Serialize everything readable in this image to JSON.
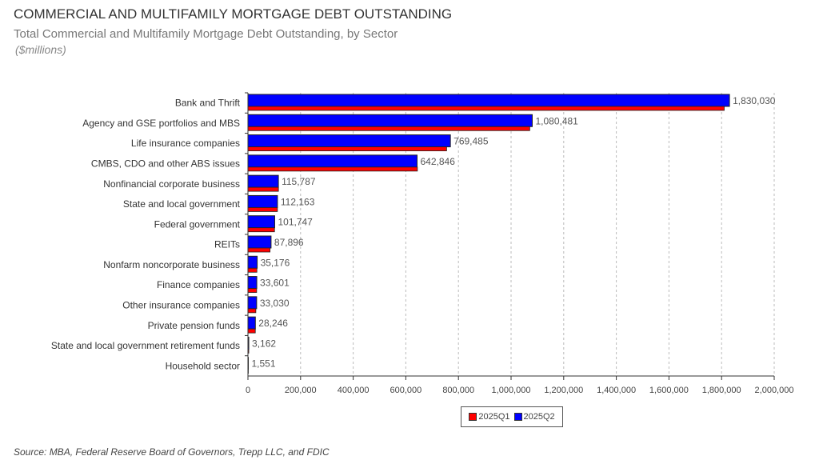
{
  "chart_data": {
    "type": "bar",
    "orientation": "horizontal",
    "title": "COMMERCIAL AND MULTIFAMILY MORTGAGE DEBT OUTSTANDING",
    "subtitle": "Total Commercial and Multifamily Mortgage Debt Outstanding, by Sector",
    "units": "($millions)",
    "categories": [
      "Bank and Thrift",
      "Agency and GSE portfolios and MBS",
      "Life insurance companies",
      "CMBS, CDO and other ABS issues",
      "Nonfinancial corporate business",
      "State and local government",
      "Federal government",
      "REITs",
      "Nonfarm noncorporate business",
      "Finance companies",
      "Other insurance companies",
      "Private pension funds",
      "State and local government retirement funds",
      "Household sector"
    ],
    "series": [
      {
        "name": "2025Q1",
        "color": "#ff0000",
        "values": [
          1810000,
          1071000,
          755000,
          644000,
          116000,
          112000,
          101000,
          84000,
          34000,
          33000,
          30000,
          28000,
          3100,
          1500
        ]
      },
      {
        "name": "2025Q2",
        "color": "#0000ff",
        "values": [
          1830030,
          1080481,
          769485,
          642846,
          115787,
          112163,
          101747,
          87896,
          35176,
          33601,
          33030,
          28246,
          3162,
          1551
        ]
      }
    ],
    "data_labels": [
      "1,830,030",
      "1,080,481",
      "769,485",
      "642,846",
      "115,787",
      "112,163",
      "101,747",
      "87,896",
      "35,176",
      "33,601",
      "33,030",
      "28,246",
      "3,162",
      "1,551"
    ],
    "xlim": [
      0,
      2000000
    ],
    "xticks": [
      "0",
      "200,000",
      "400,000",
      "600,000",
      "800,000",
      "1,000,000",
      "1,200,000",
      "1,400,000",
      "1,600,000",
      "1,800,000",
      "2,000,000"
    ],
    "grid": "vertical dashed",
    "legend": "bottom",
    "source": "Source:  MBA, Federal Reserve Board of Governors, Trepp LLC, and FDIC"
  }
}
